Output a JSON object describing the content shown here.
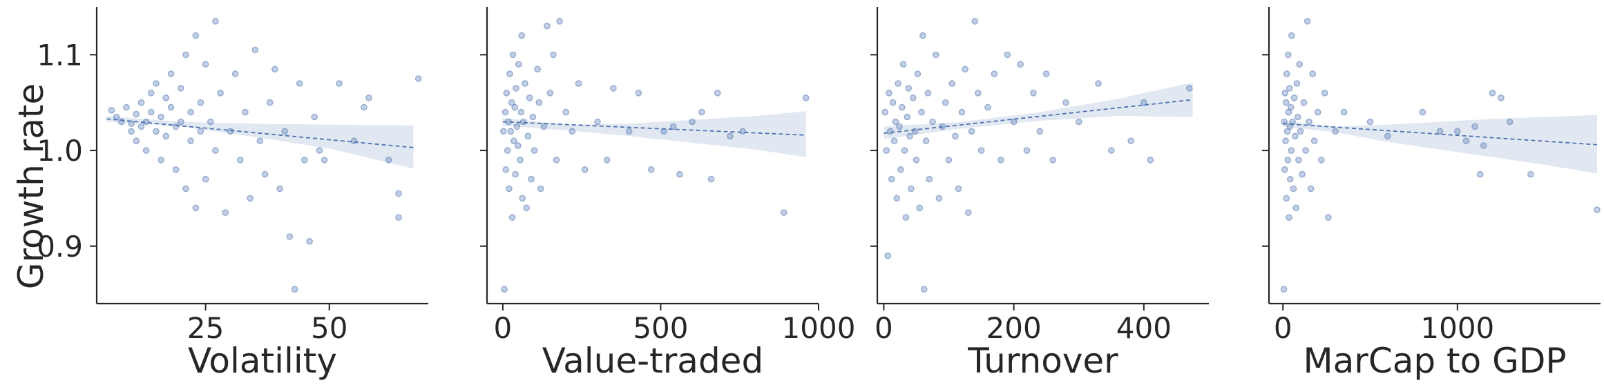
{
  "chart_data": {
    "type": "scatter",
    "ylabel": "Growth rate",
    "ylim": [
      0.84,
      1.15
    ],
    "yticks": [
      0.9,
      1.0,
      1.1
    ],
    "ytick_labels": [
      "0.9",
      "1.0",
      "1.1"
    ],
    "color": "#4c72b0",
    "panels": [
      {
        "xlabel": "Volatility",
        "xlim": [
          3,
          70
        ],
        "xticks": [
          25,
          50
        ],
        "xtick_labels": [
          "25",
          "50"
        ],
        "fit": {
          "x0": 5,
          "y0": 1.033,
          "x1": 67,
          "y1": 1.003
        },
        "band": [
          [
            5,
            1.036,
            1.03
          ],
          [
            20,
            1.03,
            1.025
          ],
          [
            35,
            1.028,
            1.014
          ],
          [
            50,
            1.027,
            1.002
          ],
          [
            67,
            1.026,
            0.981
          ]
        ],
        "points": [
          [
            6,
            1.042
          ],
          [
            7,
            1.035
          ],
          [
            8,
            1.03
          ],
          [
            9,
            1.045
          ],
          [
            10,
            1.028
          ],
          [
            10,
            1.02
          ],
          [
            11,
            1.038
          ],
          [
            11,
            1.01
          ],
          [
            12,
            1.05
          ],
          [
            12,
            1.025
          ],
          [
            13,
            1.03
          ],
          [
            13,
            1.0
          ],
          [
            14,
            1.06
          ],
          [
            14,
            1.04
          ],
          [
            15,
            1.02
          ],
          [
            15,
            1.07
          ],
          [
            16,
            1.035
          ],
          [
            16,
            0.99
          ],
          [
            17,
            1.055
          ],
          [
            17,
            1.015
          ],
          [
            18,
            1.045
          ],
          [
            18,
            1.08
          ],
          [
            19,
            1.025
          ],
          [
            19,
            0.98
          ],
          [
            20,
            1.065
          ],
          [
            20,
            1.03
          ],
          [
            21,
            1.1
          ],
          [
            21,
            0.96
          ],
          [
            22,
            1.04
          ],
          [
            22,
            1.01
          ],
          [
            23,
            1.12
          ],
          [
            23,
            0.94
          ],
          [
            24,
            1.05
          ],
          [
            24,
            1.02
          ],
          [
            25,
            1.09
          ],
          [
            25,
            0.97
          ],
          [
            26,
            1.03
          ],
          [
            27,
            1.135
          ],
          [
            27,
            1.0
          ],
          [
            28,
            1.06
          ],
          [
            29,
            0.935
          ],
          [
            30,
            1.02
          ],
          [
            31,
            1.08
          ],
          [
            32,
            0.99
          ],
          [
            33,
            1.04
          ],
          [
            34,
            0.95
          ],
          [
            35,
            1.105
          ],
          [
            36,
            1.01
          ],
          [
            37,
            0.975
          ],
          [
            38,
            1.05
          ],
          [
            39,
            1.085
          ],
          [
            40,
            0.96
          ],
          [
            41,
            1.02
          ],
          [
            42,
            0.91
          ],
          [
            43,
            0.855
          ],
          [
            44,
            1.07
          ],
          [
            45,
            0.99
          ],
          [
            46,
            0.905
          ],
          [
            47,
            1.035
          ],
          [
            48,
            1.0
          ],
          [
            49,
            0.99
          ],
          [
            52,
            1.07
          ],
          [
            55,
            1.01
          ],
          [
            57,
            1.045
          ],
          [
            58,
            1.055
          ],
          [
            62,
            0.99
          ],
          [
            64,
            0.955
          ],
          [
            64,
            0.93
          ],
          [
            68,
            1.075
          ]
        ]
      },
      {
        "xlabel": "Value-traded",
        "xlim": [
          -50,
          1000
        ],
        "xticks": [
          0,
          500,
          1000
        ],
        "xtick_labels": [
          "0",
          "500",
          "1000"
        ],
        "fit": {
          "x0": 0,
          "y0": 1.03,
          "x1": 960,
          "y1": 1.016
        },
        "band": [
          [
            0,
            1.034,
            1.026
          ],
          [
            200,
            1.027,
            1.021
          ],
          [
            400,
            1.028,
            1.015
          ],
          [
            600,
            1.032,
            1.008
          ],
          [
            800,
            1.036,
            1.001
          ],
          [
            960,
            1.041,
            0.993
          ]
        ],
        "points": [
          [
            2,
            1.02
          ],
          [
            5,
            0.855
          ],
          [
            8,
            1.04
          ],
          [
            10,
            0.98
          ],
          [
            12,
            1.06
          ],
          [
            15,
            1.0
          ],
          [
            18,
            1.03
          ],
          [
            20,
            0.96
          ],
          [
            22,
            1.08
          ],
          [
            25,
            1.02
          ],
          [
            28,
            1.05
          ],
          [
            30,
            0.93
          ],
          [
            32,
            1.1
          ],
          [
            35,
            1.01
          ],
          [
            38,
            1.045
          ],
          [
            40,
            0.975
          ],
          [
            42,
            1.065
          ],
          [
            45,
            1.025
          ],
          [
            48,
            1.005
          ],
          [
            50,
            1.09
          ],
          [
            55,
            0.99
          ],
          [
            58,
            1.04
          ],
          [
            60,
            1.12
          ],
          [
            62,
            0.95
          ],
          [
            65,
            1.03
          ],
          [
            70,
            1.07
          ],
          [
            75,
            0.94
          ],
          [
            80,
            1.015
          ],
          [
            85,
            1.055
          ],
          [
            90,
            0.97
          ],
          [
            95,
            1.035
          ],
          [
            100,
            1.0
          ],
          [
            110,
            1.085
          ],
          [
            115,
            1.05
          ],
          [
            120,
            0.96
          ],
          [
            130,
            1.025
          ],
          [
            140,
            1.13
          ],
          [
            150,
            1.06
          ],
          [
            160,
            1.1
          ],
          [
            170,
            0.99
          ],
          [
            180,
            1.135
          ],
          [
            200,
            1.04
          ],
          [
            220,
            1.02
          ],
          [
            240,
            1.07
          ],
          [
            260,
            0.98
          ],
          [
            300,
            1.03
          ],
          [
            330,
            0.99
          ],
          [
            350,
            1.065
          ],
          [
            400,
            1.02
          ],
          [
            430,
            1.06
          ],
          [
            470,
            0.98
          ],
          [
            510,
            1.02
          ],
          [
            540,
            1.025
          ],
          [
            560,
            0.975
          ],
          [
            600,
            1.03
          ],
          [
            630,
            1.04
          ],
          [
            660,
            0.97
          ],
          [
            680,
            1.06
          ],
          [
            720,
            1.015
          ],
          [
            760,
            1.02
          ],
          [
            890,
            0.935
          ],
          [
            960,
            1.055
          ]
        ]
      },
      {
        "xlabel": "Turnover",
        "xlim": [
          -10,
          500
        ],
        "xticks": [
          0,
          200,
          400
        ],
        "xtick_labels": [
          "0",
          "200",
          "400"
        ],
        "fit": {
          "x0": 0,
          "y0": 1.018,
          "x1": 475,
          "y1": 1.053
        },
        "band": [
          [
            0,
            1.025,
            1.012
          ],
          [
            120,
            1.03,
            1.023
          ],
          [
            240,
            1.04,
            1.031
          ],
          [
            360,
            1.054,
            1.036
          ],
          [
            475,
            1.071,
            1.035
          ]
        ],
        "points": [
          [
            2,
            1.04
          ],
          [
            4,
            1.0
          ],
          [
            6,
            0.89
          ],
          [
            8,
            1.06
          ],
          [
            10,
            1.02
          ],
          [
            12,
            0.97
          ],
          [
            14,
            1.05
          ],
          [
            16,
            1.01
          ],
          [
            18,
            1.03
          ],
          [
            20,
            0.95
          ],
          [
            22,
            1.07
          ],
          [
            24,
            1.025
          ],
          [
            26,
            0.98
          ],
          [
            28,
            1.045
          ],
          [
            30,
            1.09
          ],
          [
            32,
            1.0
          ],
          [
            34,
            0.93
          ],
          [
            36,
            1.035
          ],
          [
            38,
            1.065
          ],
          [
            40,
            1.015
          ],
          [
            42,
            0.96
          ],
          [
            45,
            1.055
          ],
          [
            48,
            1.02
          ],
          [
            50,
            0.99
          ],
          [
            52,
            1.08
          ],
          [
            55,
            0.94
          ],
          [
            58,
            1.04
          ],
          [
            60,
            1.12
          ],
          [
            62,
            0.855
          ],
          [
            65,
            1.01
          ],
          [
            68,
            1.06
          ],
          [
            70,
            0.97
          ],
          [
            75,
            1.03
          ],
          [
            80,
            1.1
          ],
          [
            85,
            0.95
          ],
          [
            90,
            1.025
          ],
          [
            95,
            1.05
          ],
          [
            100,
            0.99
          ],
          [
            105,
            1.07
          ],
          [
            110,
            1.015
          ],
          [
            115,
            0.96
          ],
          [
            120,
            1.04
          ],
          [
            125,
            1.085
          ],
          [
            130,
            0.935
          ],
          [
            135,
            1.02
          ],
          [
            140,
            1.135
          ],
          [
            145,
            1.06
          ],
          [
            150,
            1.0
          ],
          [
            160,
            1.045
          ],
          [
            170,
            1.08
          ],
          [
            180,
            0.99
          ],
          [
            190,
            1.1
          ],
          [
            200,
            1.03
          ],
          [
            210,
            1.09
          ],
          [
            220,
            1.0
          ],
          [
            230,
            1.06
          ],
          [
            240,
            1.02
          ],
          [
            250,
            1.08
          ],
          [
            260,
            0.99
          ],
          [
            280,
            1.05
          ],
          [
            300,
            1.03
          ],
          [
            330,
            1.07
          ],
          [
            350,
            1.0
          ],
          [
            380,
            1.01
          ],
          [
            400,
            1.05
          ],
          [
            410,
            0.99
          ],
          [
            470,
            1.065
          ]
        ]
      },
      {
        "xlabel": "MarCap to GDP",
        "xlim": [
          -80,
          1820
        ],
        "xticks": [
          0,
          1000
        ],
        "xtick_labels": [
          "0",
          "1000"
        ],
        "fit": {
          "x0": 0,
          "y0": 1.028,
          "x1": 1800,
          "y1": 1.006
        },
        "band": [
          [
            0,
            1.031,
            1.025
          ],
          [
            300,
            1.025,
            1.019
          ],
          [
            600,
            1.027,
            1.009
          ],
          [
            900,
            1.03,
            1.001
          ],
          [
            1200,
            1.033,
            0.993
          ],
          [
            1500,
            1.035,
            0.985
          ],
          [
            1800,
            1.037,
            0.976
          ]
        ],
        "points": [
          [
            5,
            0.855
          ],
          [
            8,
            1.03
          ],
          [
            10,
            0.98
          ],
          [
            12,
            1.06
          ],
          [
            15,
            1.01
          ],
          [
            18,
            1.05
          ],
          [
            20,
            0.95
          ],
          [
            22,
            1.08
          ],
          [
            25,
            1.02
          ],
          [
            28,
            0.99
          ],
          [
            30,
            1.1
          ],
          [
            32,
            1.04
          ],
          [
            35,
            0.93
          ],
          [
            38,
            1.065
          ],
          [
            40,
            1.025
          ],
          [
            42,
            0.97
          ],
          [
            45,
            1.045
          ],
          [
            48,
            1.0
          ],
          [
            50,
            1.12
          ],
          [
            55,
            1.03
          ],
          [
            60,
            0.96
          ],
          [
            65,
            1.055
          ],
          [
            70,
            1.015
          ],
          [
            75,
            0.94
          ],
          [
            80,
            1.07
          ],
          [
            85,
            1.035
          ],
          [
            90,
            0.99
          ],
          [
            95,
            1.09
          ],
          [
            100,
            1.02
          ],
          [
            110,
            0.975
          ],
          [
            120,
            1.05
          ],
          [
            130,
            1.0
          ],
          [
            140,
            1.135
          ],
          [
            150,
            1.03
          ],
          [
            160,
            0.96
          ],
          [
            170,
            1.08
          ],
          [
            180,
            1.01
          ],
          [
            200,
            1.04
          ],
          [
            220,
            0.99
          ],
          [
            240,
            1.06
          ],
          [
            260,
            0.93
          ],
          [
            300,
            1.02
          ],
          [
            350,
            1.04
          ],
          [
            500,
            1.03
          ],
          [
            600,
            1.015
          ],
          [
            800,
            1.04
          ],
          [
            900,
            1.02
          ],
          [
            1000,
            1.02
          ],
          [
            1050,
            1.01
          ],
          [
            1100,
            1.025
          ],
          [
            1130,
            0.975
          ],
          [
            1150,
            1.005
          ],
          [
            1200,
            1.06
          ],
          [
            1250,
            1.055
          ],
          [
            1300,
            1.03
          ],
          [
            1420,
            0.975
          ],
          [
            1800,
            0.938
          ]
        ]
      }
    ]
  }
}
